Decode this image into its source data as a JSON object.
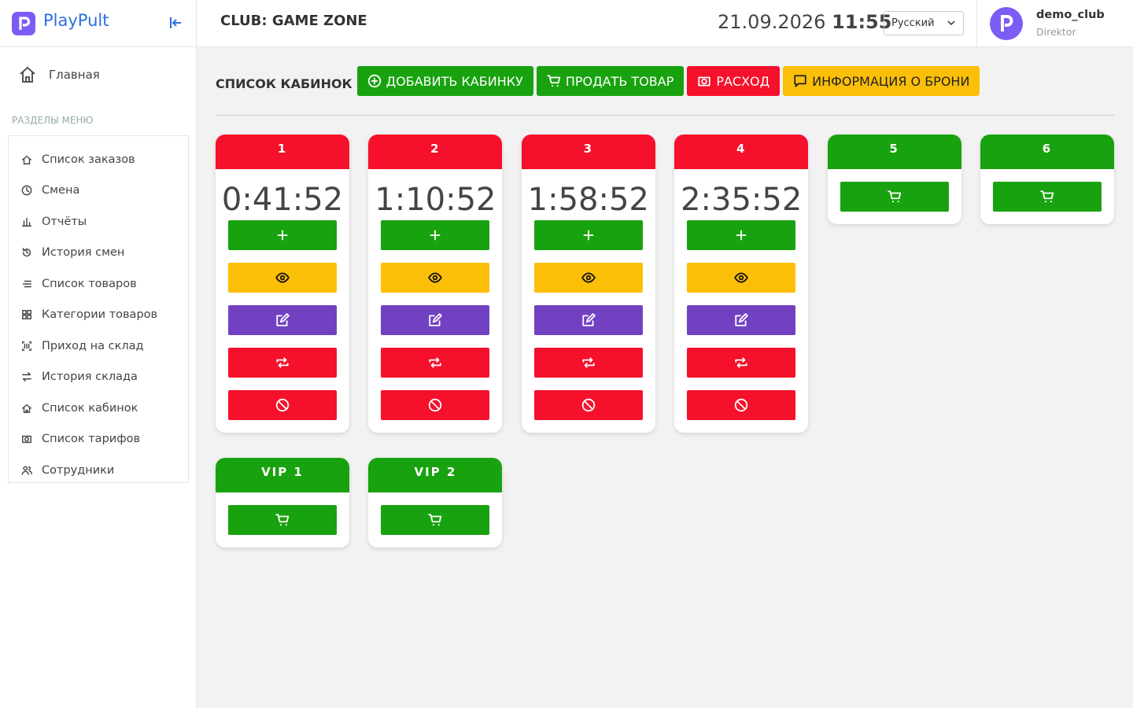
{
  "sidebar": {
    "brand": "PlayPult",
    "home": "Главная",
    "section_title": "РАЗДЕЛЫ МЕНЮ",
    "menu": [
      "Список заказов",
      "Смена",
      "Отчёты",
      "История смен",
      "Список товаров",
      "Категории товаров",
      "Приход на склад",
      "История склада",
      "Список кабинок",
      "Список тарифов",
      "Сотрудники"
    ]
  },
  "header": {
    "club": "CLUB: GAME ZONE",
    "date": "21.09.2026",
    "time": "11:55",
    "language": "Русский",
    "user": {
      "name": "demo_club",
      "role": "Direktor"
    }
  },
  "toolbar": {
    "title": "СПИСОК КАБИНОК",
    "buttons": [
      "ДОБАВИТЬ КАБИНКУ",
      "ПРОДАТЬ ТОВАР",
      "РАСХОД",
      "ИНФОРМАЦИЯ О БРОНИ"
    ]
  },
  "cabins": [
    {
      "name": "1",
      "timer": "0:41:52"
    },
    {
      "name": "2",
      "timer": "1:10:52"
    },
    {
      "name": "3",
      "timer": "1:58:52"
    },
    {
      "name": "4",
      "timer": "2:35:52"
    },
    {
      "name": "5"
    },
    {
      "name": "6"
    },
    {
      "name": "VIP 1"
    },
    {
      "name": "VIP 2"
    }
  ]
}
